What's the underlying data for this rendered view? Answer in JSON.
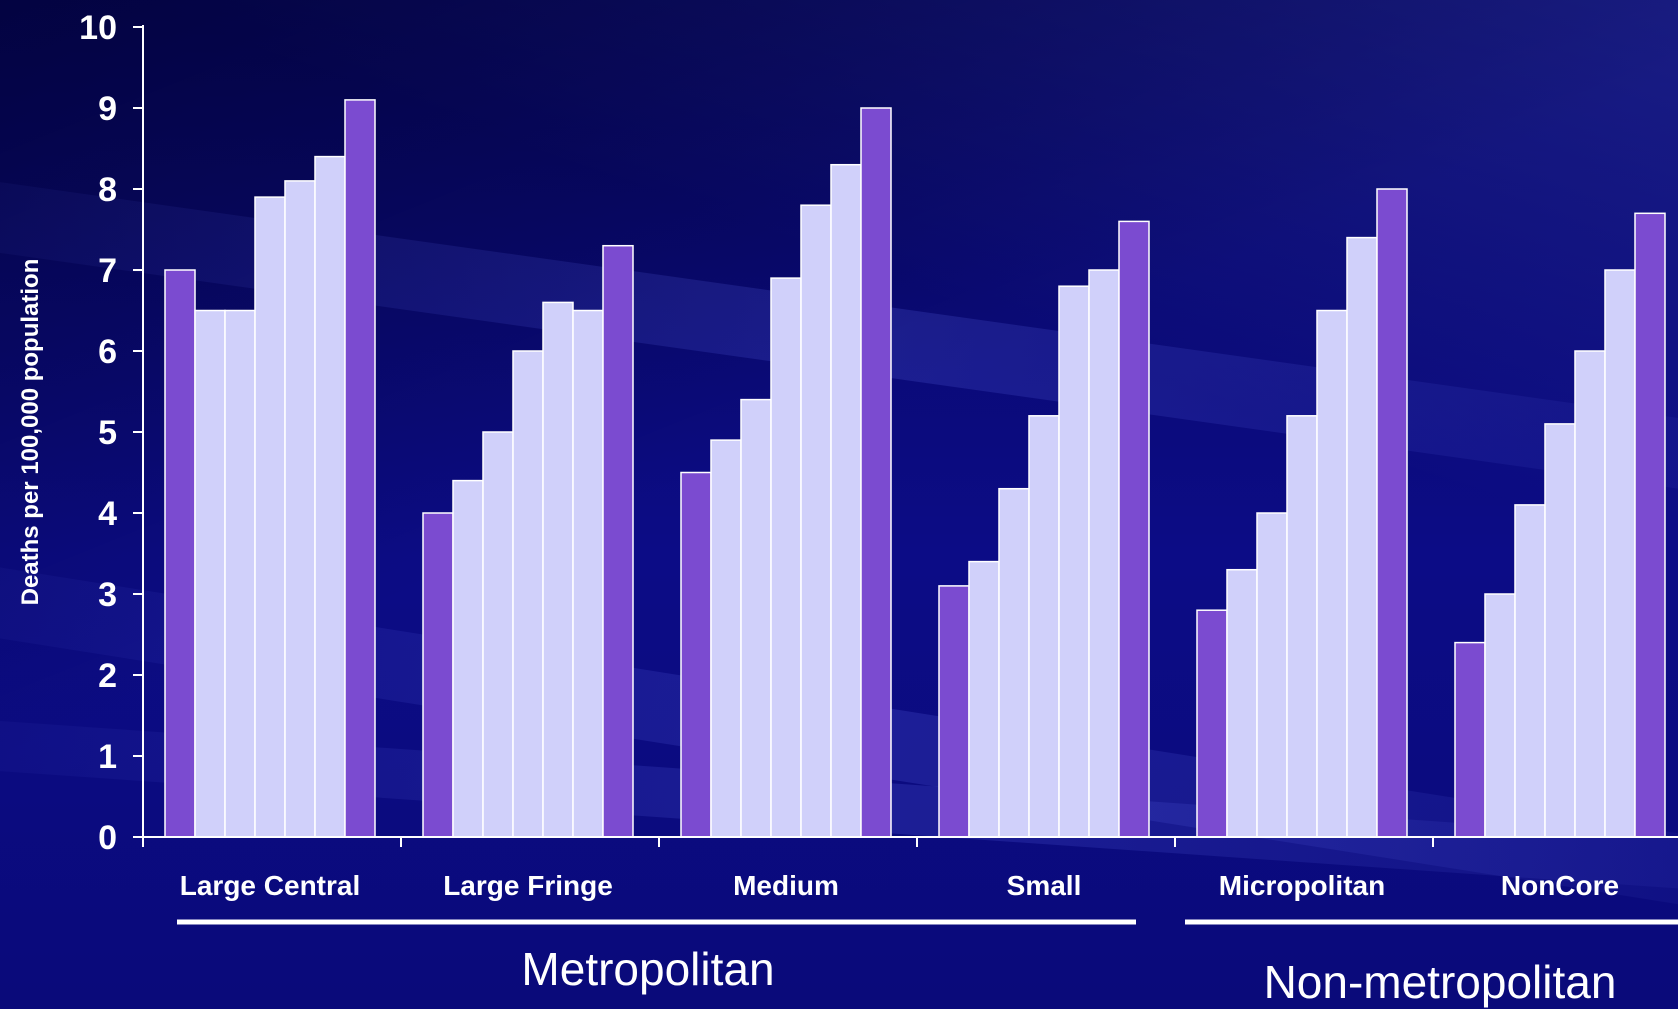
{
  "chart_data": {
    "type": "bar",
    "title": "",
    "ylabel": "Deaths per 100,000 population",
    "xlabel": "",
    "ylim": [
      0,
      10
    ],
    "yticks": [
      "0",
      "1",
      "2",
      "3",
      "4",
      "5",
      "6",
      "7",
      "8",
      "9",
      "10"
    ],
    "grid": false,
    "legend": "none",
    "categories": [
      "Large Central",
      "Large Fringe",
      "Medium",
      "Small",
      "Micropolitan",
      "NonCore"
    ],
    "series": [
      {
        "values": [
          7.0,
          4.0,
          4.5,
          3.1,
          2.8,
          2.4
        ]
      },
      {
        "values": [
          6.5,
          4.4,
          4.9,
          3.4,
          3.3,
          3.0
        ]
      },
      {
        "values": [
          6.5,
          5.0,
          5.4,
          4.3,
          4.0,
          4.1
        ]
      },
      {
        "values": [
          7.9,
          6.0,
          6.9,
          5.2,
          5.2,
          5.1
        ]
      },
      {
        "values": [
          8.1,
          6.6,
          7.8,
          6.8,
          6.5,
          6.0
        ]
      },
      {
        "values": [
          8.4,
          6.5,
          8.3,
          7.0,
          7.4,
          7.0
        ]
      },
      {
        "values": [
          9.1,
          7.3,
          9.0,
          7.6,
          8.0,
          7.7
        ]
      }
    ],
    "series_colors": [
      "#7b4bd0",
      "#d0d0fa",
      "#d0d0fa",
      "#d0d0fa",
      "#d0d0fa",
      "#d0d0fa",
      "#7b4bd0"
    ],
    "groups": [
      {
        "label": "Metropolitan",
        "categories": [
          "Large Central",
          "Large Fringe",
          "Medium",
          "Small"
        ]
      },
      {
        "label": "Non-metropolitan",
        "categories": [
          "Micropolitan",
          "NonCore"
        ]
      }
    ]
  },
  "colors": {
    "text": "#ffffff",
    "axis": "#ffffff",
    "bar_border": "#ffffff"
  }
}
